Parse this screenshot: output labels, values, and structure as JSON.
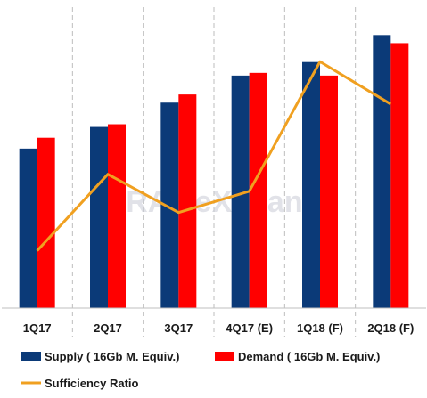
{
  "chart_data": {
    "type": "bar",
    "categories": [
      "1Q17",
      "2Q17",
      "3Q17",
      "4Q17 (E)",
      "1Q18 (F)",
      "2Q18 (F)"
    ],
    "series": [
      {
        "name": "Supply ( 16Gb M. Equiv.)",
        "type": "bar",
        "color": "#0b3a78",
        "values": [
          59,
          67,
          76,
          86,
          91,
          101
        ]
      },
      {
        "name": "Demand ( 16Gb M. Equiv.)",
        "type": "bar",
        "color": "#ff0000",
        "values": [
          63,
          68,
          79,
          87,
          86,
          98
        ]
      },
      {
        "name": "Sufficiency Ratio",
        "type": "line",
        "color": "#f0a020",
        "values": [
          -5.3,
          -1.7,
          -3.5,
          -2.5,
          3.6,
          1.6
        ]
      }
    ],
    "ylim": [
      0,
      110
    ],
    "line_ylim": [
      -8,
      6
    ],
    "grid": "vertical dashed separators",
    "legend": "bottom",
    "watermark": "DRAMeXchange"
  }
}
